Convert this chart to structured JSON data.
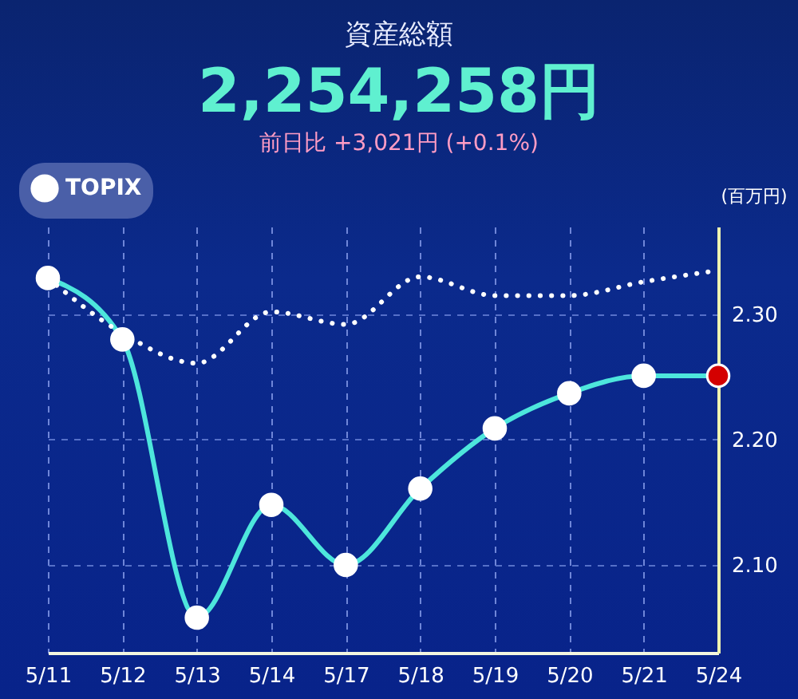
{
  "chart_data": {
    "type": "line",
    "title": "資産総額",
    "subtitle": "2,254,258円",
    "annotations": [
      "前日比 +3,021円 (+0.1%)"
    ],
    "ylabel": "(百万円)",
    "categories": [
      "5/11",
      "5/12",
      "5/13",
      "5/14",
      "5/17",
      "5/18",
      "5/19",
      "5/20",
      "5/21",
      "5/24"
    ],
    "series": [
      {
        "color": "#4de6dc",
        "marker": "circle",
        "line_style": "solid",
        "colors": [
          "#ffffff",
          "#ffffff",
          "#ffffff",
          "#ffffff",
          "#ffffff",
          "#ffffff",
          "#ffffff",
          "#ffffff",
          "#ffffff",
          "#d40000"
        ],
        "values": [
          2.329,
          2.28,
          2.058,
          2.148,
          2.1,
          2.161,
          2.209,
          2.237,
          2.251,
          2.251
        ]
      },
      {
        "name": "TOPIX",
        "color": "#ffffff",
        "marker": "none",
        "line_style": "dotted",
        "values": [
          2.329,
          2.285,
          2.261,
          2.302,
          2.292,
          2.33,
          2.315,
          2.315,
          2.326,
          2.335
        ]
      }
    ],
    "ylim": [
      2.03,
      2.37
    ],
    "yticks": [
      {
        "value": 2.1,
        "label": "2.10"
      },
      {
        "value": 2.2,
        "label": "2.20"
      },
      {
        "value": 2.3,
        "label": "2.30"
      }
    ],
    "grid": true,
    "legend": "top left"
  }
}
